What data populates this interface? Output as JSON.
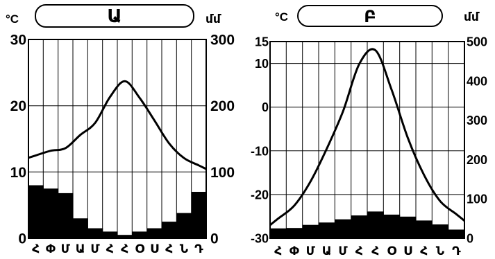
{
  "chart_data": [
    {
      "type": "bar+line",
      "title": "Ա",
      "left_unit": "°C",
      "right_unit": "մմ",
      "months": [
        "Հ",
        "Փ",
        "Մ",
        "Ա",
        "Մ",
        "Հ",
        "Հ",
        "Օ",
        "Ս",
        "Հ",
        "Ն",
        "Դ"
      ],
      "temperature_axis": {
        "min": 0,
        "max": 30,
        "ticks": [
          0,
          10,
          20,
          30
        ]
      },
      "precipitation_axis": {
        "min": 0,
        "max": 300,
        "ticks": [
          0,
          100,
          200,
          300
        ]
      },
      "precipitation": [
        80,
        75,
        68,
        30,
        15,
        10,
        5,
        10,
        15,
        25,
        38,
        70
      ],
      "temperature": [
        12.5,
        13.2,
        13.6,
        15.6,
        17.4,
        21.3,
        23.7,
        21.2,
        17.8,
        14.3,
        12.1,
        11.0
      ]
    },
    {
      "type": "bar+line",
      "title": "Բ",
      "left_unit": "°C",
      "right_unit": "մմ",
      "months": [
        "Հ",
        "Փ",
        "Մ",
        "Ա",
        "Մ",
        "Հ",
        "Հ",
        "Օ",
        "Ս",
        "Հ",
        "Ն",
        "Դ"
      ],
      "temperature_axis": {
        "min": -30,
        "max": 15,
        "ticks": [
          -30,
          -20,
          -10,
          0,
          10,
          15
        ]
      },
      "precipitation_axis": {
        "min": 0,
        "max": 500,
        "ticks": [
          0,
          100,
          200,
          300,
          400,
          500
        ]
      },
      "precipitation": [
        25,
        26,
        34,
        40,
        48,
        58,
        68,
        60,
        55,
        45,
        35,
        22
      ],
      "temperature": [
        -25.5,
        -22.5,
        -17.0,
        -9.5,
        -1.0,
        9.8,
        13.0,
        4.0,
        -7.0,
        -15.5,
        -21.5,
        -24.5
      ]
    }
  ]
}
